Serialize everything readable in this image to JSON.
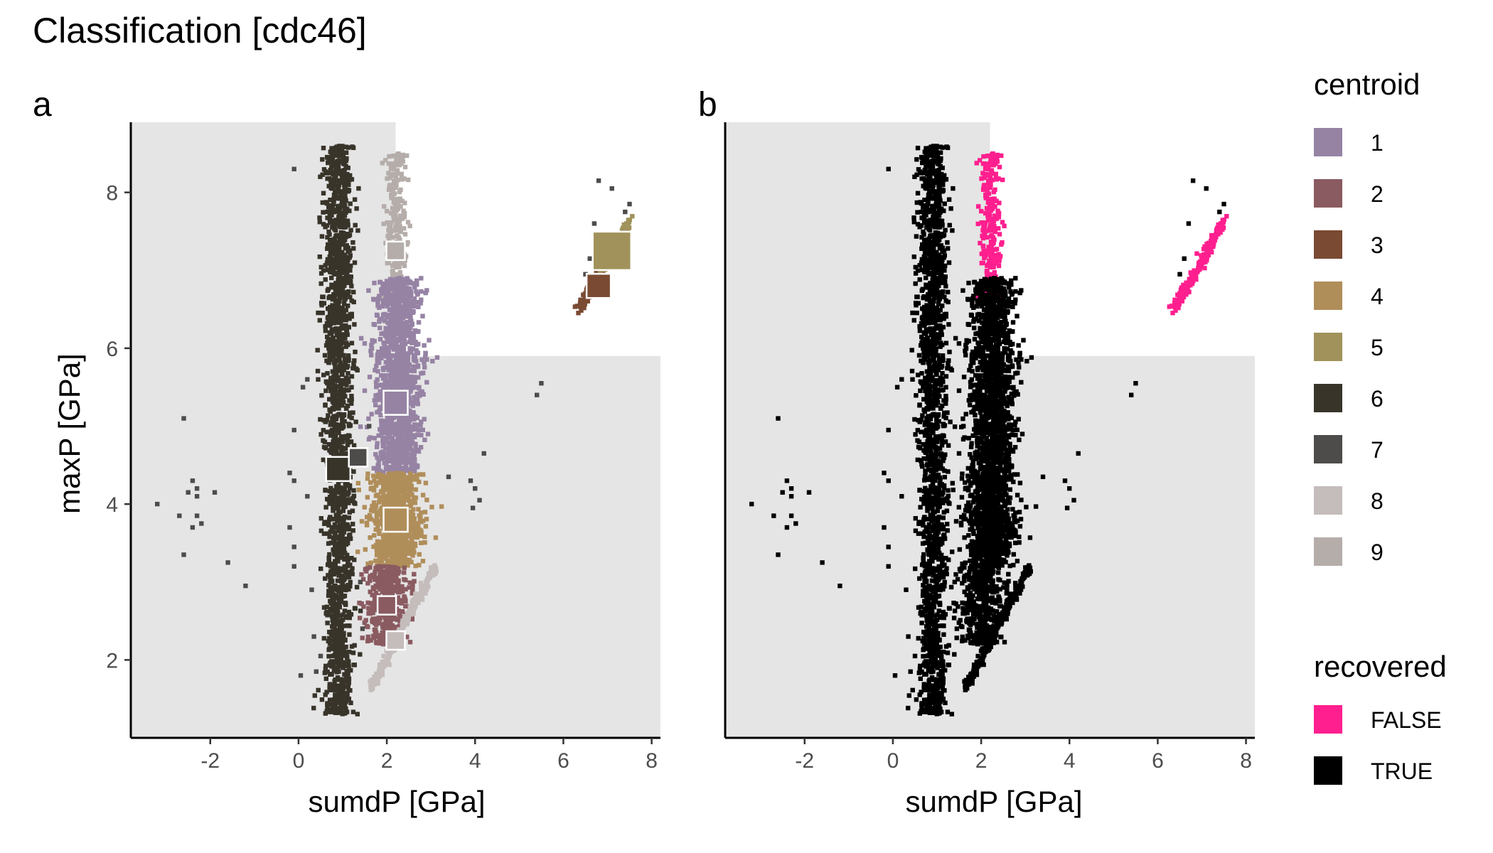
{
  "title": "Classification [cdc46]",
  "panels": [
    {
      "tag": "a",
      "xlabel": "sumdP [GPa]",
      "ylabel": "maxP [GPa]"
    },
    {
      "tag": "b",
      "xlabel": "sumdP [GPa]",
      "ylabel": ""
    }
  ],
  "legend": {
    "centroid": {
      "title": "centroid",
      "items": [
        {
          "label": "1",
          "color": "#9683a4"
        },
        {
          "label": "2",
          "color": "#8a5b61"
        },
        {
          "label": "3",
          "color": "#7a4a33"
        },
        {
          "label": "4",
          "color": "#b08e5a"
        },
        {
          "label": "5",
          "color": "#a0925a"
        },
        {
          "label": "6",
          "color": "#38342a"
        },
        {
          "label": "7",
          "color": "#4e4b4b"
        },
        {
          "label": "8",
          "color": "#c5bcbc"
        },
        {
          "label": "9",
          "color": "#b5adaa"
        }
      ]
    },
    "recovered": {
      "title": "recovered",
      "items": [
        {
          "label": "FALSE",
          "color": "#ff1f8e"
        },
        {
          "label": "TRUE",
          "color": "#000000"
        }
      ]
    }
  },
  "chart_data": {
    "type": "scatter",
    "x_range": [
      -3.8,
      8.2
    ],
    "y_range": [
      1.0,
      8.9
    ],
    "x_ticks": [
      -2,
      0,
      2,
      4,
      6,
      8
    ],
    "y_ticks": [
      2,
      4,
      6,
      8
    ],
    "background_region": {
      "x_break": 2.2,
      "y_break": 5.9
    },
    "panel_a_colored_by": "centroid",
    "panel_b_colored_by": "recovered",
    "centroids": [
      {
        "id": "1",
        "x": 2.2,
        "y": 5.3,
        "size": "medium"
      },
      {
        "id": "2",
        "x": 2.0,
        "y": 2.7,
        "size": "small"
      },
      {
        "id": "3",
        "x": 6.8,
        "y": 6.8,
        "size": "medium"
      },
      {
        "id": "4",
        "x": 2.2,
        "y": 3.8,
        "size": "medium"
      },
      {
        "id": "5",
        "x": 7.1,
        "y": 7.25,
        "size": "large"
      },
      {
        "id": "6",
        "x": 0.9,
        "y": 4.45,
        "size": "medium"
      },
      {
        "id": "7",
        "x": 1.35,
        "y": 4.6,
        "size": "small"
      },
      {
        "id": "8",
        "x": 2.2,
        "y": 2.25,
        "size": "small"
      },
      {
        "id": "9",
        "x": 2.2,
        "y": 7.25,
        "size": "small"
      }
    ],
    "clusters": [
      {
        "id": "6",
        "shape": "band",
        "x": 0.9,
        "x_spread": 0.32,
        "y_min": 1.3,
        "y_max": 8.6,
        "n": 1700,
        "recovered": "TRUE"
      },
      {
        "id": "9",
        "shape": "band",
        "x": 2.2,
        "x_spread": 0.26,
        "y_min": 6.6,
        "y_max": 8.5,
        "n": 280,
        "recovered": "FALSE"
      },
      {
        "id": "1",
        "shape": "band",
        "x": 2.25,
        "x_spread": 0.5,
        "y_min": 4.4,
        "y_max": 6.9,
        "n": 1300,
        "recovered": "TRUE"
      },
      {
        "id": "4",
        "shape": "band",
        "x": 2.2,
        "x_spread": 0.55,
        "y_min": 3.2,
        "y_max": 4.4,
        "n": 900,
        "recovered": "TRUE"
      },
      {
        "id": "2",
        "shape": "band",
        "x": 2.0,
        "x_spread": 0.45,
        "y_min": 2.2,
        "y_max": 3.2,
        "n": 420,
        "recovered": "TRUE"
      },
      {
        "id": "8",
        "shape": "line",
        "x0": 1.6,
        "y0": 1.6,
        "x1": 3.1,
        "y1": 3.2,
        "n": 260,
        "recovered": "TRUE"
      },
      {
        "id": "3",
        "shape": "line",
        "x0": 6.35,
        "y0": 6.5,
        "x1": 6.9,
        "y1": 7.0,
        "n": 90,
        "recovered": "FALSE"
      },
      {
        "id": "5",
        "shape": "line",
        "x0": 6.9,
        "y0": 7.0,
        "x1": 7.5,
        "y1": 7.65,
        "n": 110,
        "recovered": "FALSE"
      }
    ],
    "outliers": [
      {
        "id": "7",
        "x": -3.2,
        "y": 4.0
      },
      {
        "id": "7",
        "x": -2.6,
        "y": 5.1
      },
      {
        "id": "7",
        "x": -2.6,
        "y": 3.35
      },
      {
        "id": "7",
        "x": -2.4,
        "y": 4.3
      },
      {
        "id": "7",
        "x": -2.3,
        "y": 4.2
      },
      {
        "id": "7",
        "x": -2.5,
        "y": 4.15
      },
      {
        "id": "7",
        "x": -2.3,
        "y": 4.1
      },
      {
        "id": "7",
        "x": -2.7,
        "y": 3.85
      },
      {
        "id": "7",
        "x": -2.3,
        "y": 3.85
      },
      {
        "id": "7",
        "x": -2.2,
        "y": 3.75
      },
      {
        "id": "7",
        "x": -2.4,
        "y": 3.7
      },
      {
        "id": "7",
        "x": -1.9,
        "y": 4.15
      },
      {
        "id": "7",
        "x": -1.6,
        "y": 3.25
      },
      {
        "id": "7",
        "x": -1.2,
        "y": 2.95
      },
      {
        "id": "7",
        "x": -0.1,
        "y": 8.3
      },
      {
        "id": "7",
        "x": -0.1,
        "y": 4.95
      },
      {
        "id": "7",
        "x": -0.2,
        "y": 4.4
      },
      {
        "id": "7",
        "x": -0.1,
        "y": 4.3
      },
      {
        "id": "7",
        "x": -0.2,
        "y": 3.7
      },
      {
        "id": "7",
        "x": -0.1,
        "y": 3.45
      },
      {
        "id": "7",
        "x": 0.05,
        "y": 1.8
      },
      {
        "id": "7",
        "x": -0.1,
        "y": 3.2
      },
      {
        "id": "7",
        "x": 0.1,
        "y": 5.5
      },
      {
        "id": "7",
        "x": 0.2,
        "y": 5.6
      },
      {
        "id": "7",
        "x": 0.2,
        "y": 4.1
      },
      {
        "id": "7",
        "x": 0.3,
        "y": 2.9
      },
      {
        "id": "7",
        "x": 0.35,
        "y": 2.3
      },
      {
        "id": "7",
        "x": 0.4,
        "y": 1.85
      },
      {
        "id": "7",
        "x": 0.5,
        "y": 2.05
      },
      {
        "id": "7",
        "x": 1.5,
        "y": 4.65
      },
      {
        "id": "7",
        "x": 1.4,
        "y": 3.0
      },
      {
        "id": "7",
        "x": 1.45,
        "y": 2.4
      },
      {
        "id": "7",
        "x": 1.6,
        "y": 5.0
      },
      {
        "id": "7",
        "x": 3.9,
        "y": 4.3
      },
      {
        "id": "7",
        "x": 4.2,
        "y": 4.65
      },
      {
        "id": "7",
        "x": 4.0,
        "y": 4.2
      },
      {
        "id": "7",
        "x": 4.1,
        "y": 4.05
      },
      {
        "id": "7",
        "x": 3.95,
        "y": 3.95
      },
      {
        "id": "7",
        "x": 3.4,
        "y": 4.35
      },
      {
        "id": "7",
        "x": 5.5,
        "y": 5.55
      },
      {
        "id": "7",
        "x": 5.4,
        "y": 5.4
      },
      {
        "id": "7",
        "x": 6.8,
        "y": 8.15
      },
      {
        "id": "7",
        "x": 7.1,
        "y": 8.05
      },
      {
        "id": "7",
        "x": 7.5,
        "y": 7.85
      },
      {
        "id": "7",
        "x": 7.4,
        "y": 7.75
      },
      {
        "id": "7",
        "x": 6.6,
        "y": 7.15
      },
      {
        "id": "7",
        "x": 6.5,
        "y": 6.95
      },
      {
        "id": "7",
        "x": 6.7,
        "y": 7.6
      }
    ]
  }
}
